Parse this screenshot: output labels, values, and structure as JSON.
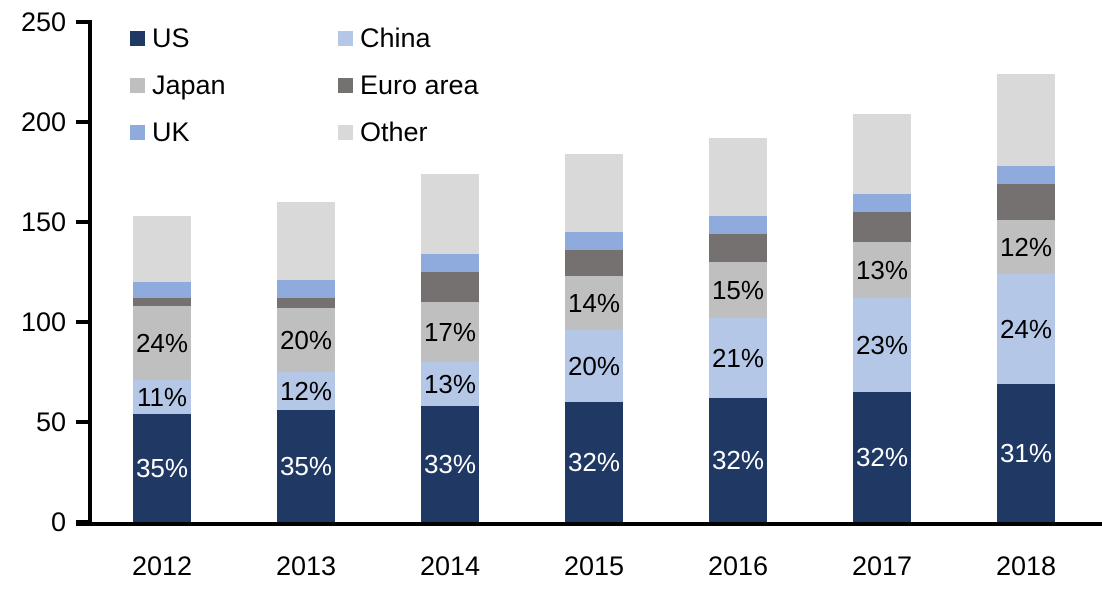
{
  "chart_data": {
    "type": "bar",
    "stacked": true,
    "title": "",
    "xlabel": "",
    "ylabel": "",
    "categories": [
      "2012",
      "2013",
      "2014",
      "2015",
      "2016",
      "2017",
      "2018"
    ],
    "series": [
      {
        "name": "US",
        "color": "#1f3864",
        "values": [
          54,
          56,
          58,
          60,
          62,
          65,
          69
        ],
        "pct_labels": [
          "35%",
          "35%",
          "33%",
          "32%",
          "32%",
          "32%",
          "31%"
        ],
        "label_color": "#ffffff"
      },
      {
        "name": "China",
        "color": "#b4c7e7",
        "values": [
          17,
          19,
          22,
          36,
          40,
          47,
          55
        ],
        "pct_labels": [
          "11%",
          "12%",
          "13%",
          "20%",
          "21%",
          "23%",
          "24%"
        ],
        "label_color": "#000000"
      },
      {
        "name": "Japan",
        "color": "#bfbfbf",
        "values": [
          37,
          32,
          30,
          27,
          28,
          28,
          27
        ],
        "pct_labels": [
          "24%",
          "20%",
          "17%",
          "14%",
          "15%",
          "13%",
          "12%"
        ],
        "label_color": "#000000"
      },
      {
        "name": "Euro area",
        "color": "#767171",
        "values": [
          4,
          5,
          15,
          13,
          14,
          15,
          18
        ],
        "pct_labels": [
          null,
          null,
          null,
          null,
          null,
          null,
          null
        ],
        "label_color": "#000000"
      },
      {
        "name": "UK",
        "color": "#8faadc",
        "values": [
          8,
          9,
          9,
          9,
          9,
          9,
          9
        ],
        "pct_labels": [
          null,
          null,
          null,
          null,
          null,
          null,
          null
        ],
        "label_color": "#000000"
      },
      {
        "name": "Other",
        "color": "#d9d9d9",
        "values": [
          33,
          39,
          40,
          39,
          39,
          40,
          46
        ],
        "pct_labels": [
          null,
          null,
          null,
          null,
          null,
          null,
          null
        ],
        "label_color": "#000000"
      }
    ],
    "totals": [
      153,
      160,
      174,
      184,
      192,
      204,
      224
    ],
    "y_axis": {
      "min": 0,
      "max": 250,
      "tick_values": [
        0,
        50,
        100,
        150,
        200,
        250
      ],
      "tick_labels": [
        "0",
        "50",
        "100",
        "150",
        "200",
        "250"
      ],
      "grid": false
    },
    "legend": {
      "position": "top-left",
      "columns": 2,
      "entries": [
        "US",
        "China",
        "Japan",
        "Euro area",
        "UK",
        "Other"
      ]
    },
    "axis_color": "#000000",
    "background_color": "#ffffff"
  }
}
